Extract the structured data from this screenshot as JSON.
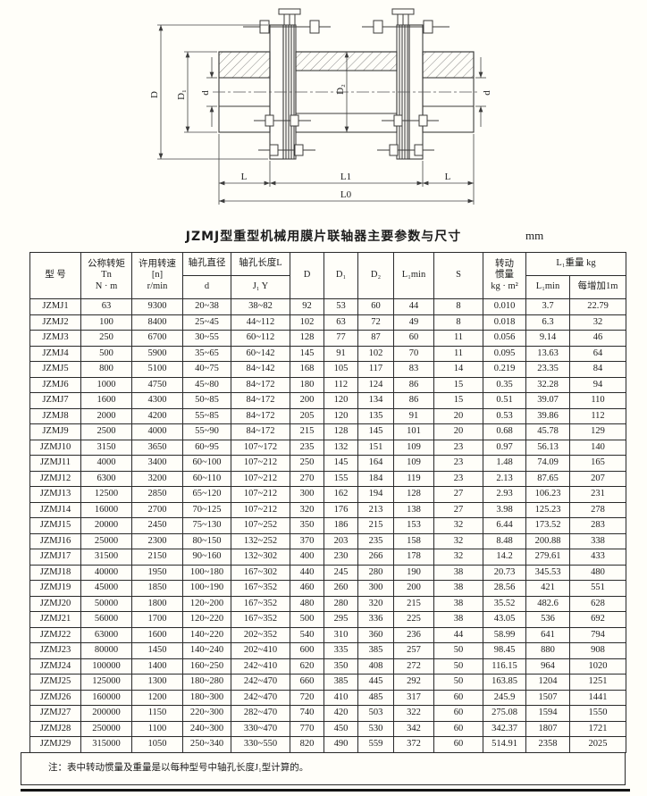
{
  "title": {
    "text": "JZMJ型重型机械用膜片联轴器主要参数与尺寸",
    "unit": "mm"
  },
  "drawing": {
    "labels": {
      "D": "D",
      "D1": "D₁",
      "d_left": "d",
      "D2": "D₂",
      "d_right": "d",
      "L_left": "L",
      "L1": "L1",
      "L_right": "L",
      "L0": "L0"
    }
  },
  "table": {
    "header": {
      "model": "型  号",
      "torque": "公称转矩\nTn\nN · m",
      "speed": "许用转速\n[n]\nr/min",
      "bore_dia": "轴孔直径",
      "bore_dia_sub": "d",
      "bore_len": "轴孔长度L",
      "bore_len_sub": "J₁  Y",
      "D": "D",
      "D1": "D₁",
      "D2": "D₂",
      "L1min": "L₁min",
      "S": "S",
      "inertia": "转动\n惯量\nkg · m²",
      "weight_group": "L₁重量  kg",
      "weight_l1min": "L₁min",
      "weight_per_m": "每增加1m"
    },
    "rows": [
      [
        "JZMJ1",
        "63",
        "9300",
        "20~38",
        "38~82",
        "92",
        "53",
        "60",
        "44",
        "8",
        "0.010",
        "3.7",
        "22.79"
      ],
      [
        "JZMJ2",
        "100",
        "8400",
        "25~45",
        "44~112",
        "102",
        "63",
        "72",
        "49",
        "8",
        "0.018",
        "6.3",
        "32"
      ],
      [
        "JZMJ3",
        "250",
        "6700",
        "30~55",
        "60~112",
        "128",
        "77",
        "87",
        "60",
        "11",
        "0.056",
        "9.14",
        "46"
      ],
      [
        "JZMJ4",
        "500",
        "5900",
        "35~65",
        "60~142",
        "145",
        "91",
        "102",
        "70",
        "11",
        "0.095",
        "13.63",
        "64"
      ],
      [
        "JZMJ5",
        "800",
        "5100",
        "40~75",
        "84~142",
        "168",
        "105",
        "117",
        "83",
        "14",
        "0.219",
        "23.35",
        "84"
      ],
      [
        "JZMJ6",
        "1000",
        "4750",
        "45~80",
        "84~172",
        "180",
        "112",
        "124",
        "86",
        "15",
        "0.35",
        "32.28",
        "94"
      ],
      [
        "JZMJ7",
        "1600",
        "4300",
        "50~85",
        "84~172",
        "200",
        "120",
        "134",
        "86",
        "15",
        "0.51",
        "39.07",
        "110"
      ],
      [
        "JZMJ8",
        "2000",
        "4200",
        "55~85",
        "84~172",
        "205",
        "120",
        "135",
        "91",
        "20",
        "0.53",
        "39.86",
        "112"
      ],
      [
        "JZMJ9",
        "2500",
        "4000",
        "55~90",
        "84~172",
        "215",
        "128",
        "145",
        "101",
        "20",
        "0.68",
        "45.78",
        "129"
      ],
      [
        "JZMJ10",
        "3150",
        "3650",
        "60~95",
        "107~172",
        "235",
        "132",
        "151",
        "109",
        "23",
        "0.97",
        "56.13",
        "140"
      ],
      [
        "JZMJ11",
        "4000",
        "3400",
        "60~100",
        "107~212",
        "250",
        "145",
        "164",
        "109",
        "23",
        "1.48",
        "74.09",
        "165"
      ],
      [
        "JZMJ12",
        "6300",
        "3200",
        "60~110",
        "107~212",
        "270",
        "155",
        "184",
        "119",
        "23",
        "2.13",
        "87.65",
        "207"
      ],
      [
        "JZMJ13",
        "12500",
        "2850",
        "65~120",
        "107~212",
        "300",
        "162",
        "194",
        "128",
        "27",
        "2.93",
        "106.23",
        "231"
      ],
      [
        "JZMJ14",
        "16000",
        "2700",
        "70~125",
        "107~212",
        "320",
        "176",
        "213",
        "138",
        "27",
        "3.98",
        "125.23",
        "278"
      ],
      [
        "JZMJ15",
        "20000",
        "2450",
        "75~130",
        "107~252",
        "350",
        "186",
        "215",
        "153",
        "32",
        "6.44",
        "173.52",
        "283"
      ],
      [
        "JZMJ16",
        "25000",
        "2300",
        "80~150",
        "132~252",
        "370",
        "203",
        "235",
        "158",
        "32",
        "8.48",
        "200.88",
        "338"
      ],
      [
        "JZMJ17",
        "31500",
        "2150",
        "90~160",
        "132~302",
        "400",
        "230",
        "266",
        "178",
        "32",
        "14.2",
        "279.61",
        "433"
      ],
      [
        "JZMJ18",
        "40000",
        "1950",
        "100~180",
        "167~302",
        "440",
        "245",
        "280",
        "190",
        "38",
        "20.73",
        "345.53",
        "480"
      ],
      [
        "JZMJ19",
        "45000",
        "1850",
        "100~190",
        "167~352",
        "460",
        "260",
        "300",
        "200",
        "38",
        "28.56",
        "421",
        "551"
      ],
      [
        "JZMJ20",
        "50000",
        "1800",
        "120~200",
        "167~352",
        "480",
        "280",
        "320",
        "215",
        "38",
        "35.52",
        "482.6",
        "628"
      ],
      [
        "JZMJ21",
        "56000",
        "1700",
        "120~220",
        "167~352",
        "500",
        "295",
        "336",
        "225",
        "38",
        "43.05",
        "536",
        "692"
      ],
      [
        "JZMJ22",
        "63000",
        "1600",
        "140~220",
        "202~352",
        "540",
        "310",
        "360",
        "236",
        "44",
        "58.99",
        "641",
        "794"
      ],
      [
        "JZMJ23",
        "80000",
        "1450",
        "140~240",
        "202~410",
        "600",
        "335",
        "385",
        "257",
        "50",
        "98.45",
        "880",
        "908"
      ],
      [
        "JZMJ24",
        "100000",
        "1400",
        "160~250",
        "242~410",
        "620",
        "350",
        "408",
        "272",
        "50",
        "116.15",
        "964",
        "1020"
      ],
      [
        "JZMJ25",
        "125000",
        "1300",
        "180~280",
        "242~470",
        "660",
        "385",
        "445",
        "292",
        "50",
        "163.85",
        "1204",
        "1251"
      ],
      [
        "JZMJ26",
        "160000",
        "1200",
        "180~300",
        "242~470",
        "720",
        "410",
        "485",
        "317",
        "60",
        "245.9",
        "1507",
        "1441"
      ],
      [
        "JZMJ27",
        "200000",
        "1150",
        "220~300",
        "282~470",
        "740",
        "420",
        "503",
        "322",
        "60",
        "275.08",
        "1594",
        "1550"
      ],
      [
        "JZMJ28",
        "250000",
        "1100",
        "240~300",
        "330~470",
        "770",
        "450",
        "530",
        "342",
        "60",
        "342.37",
        "1807",
        "1721"
      ],
      [
        "JZMJ29",
        "315000",
        "1050",
        "250~340",
        "330~550",
        "820",
        "490",
        "559",
        "372",
        "60",
        "514.91",
        "2358",
        "2025"
      ]
    ],
    "note": "注：表中转动惯量及重量是以每种型号中轴孔长度J₁型计算的。"
  }
}
